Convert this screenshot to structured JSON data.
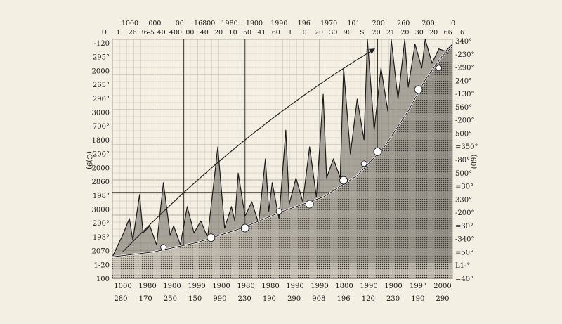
{
  "colors": {
    "background": "#f4efe3",
    "ink": "#1c1c1c",
    "grid": "#9a9486",
    "fill_dark": "#3a3a3a",
    "marker": "#ffffff"
  },
  "chart_data": {
    "type": "area",
    "title": "",
    "xlabel": "",
    "ylabel": "",
    "grid": true,
    "top_tick_labels_row1": [
      "1000",
      "000",
      "00",
      "16800",
      "1980",
      "1900",
      "1990",
      "196",
      "1970",
      "101",
      "200",
      "260",
      "200",
      "0"
    ],
    "top_tick_labels_row2": [
      "D",
      "1",
      "26",
      "36-5",
      "40",
      "400",
      "00",
      "40",
      "20",
      "10",
      "50",
      "41",
      "60",
      "1",
      "0",
      "20",
      "30",
      "90",
      "S",
      "20",
      "21",
      "20",
      "30",
      "20",
      "66",
      "6"
    ],
    "left_tick_labels": [
      "-120",
      "295°",
      "2000",
      "265°",
      "290°",
      "3000",
      "700°",
      "1800",
      "200°",
      "2000",
      "2860",
      "198°",
      "3000",
      "200°",
      "198°",
      "2070",
      "1-20",
      "100"
    ],
    "right_tick_labels": [
      "340°",
      "-230°",
      "-290°",
      "240°",
      "-130°",
      "560°",
      "-200°",
      "500°",
      "=350°",
      "-80°",
      "500°",
      "=30°",
      "330°",
      "-200°",
      "=30°",
      "-340°",
      "=50°",
      "L1-°",
      "=40°"
    ],
    "left_axis_label": "(C)9)",
    "right_axis_label": "(09)",
    "bottom_tick_labels_row1": [
      "1000",
      "1980",
      "1900",
      "1990",
      "1900",
      "1980",
      "1980",
      "1990",
      "1990",
      "1800",
      "1990",
      "1900",
      "199°",
      "2000"
    ],
    "bottom_tick_labels_row2": [
      "280",
      "170",
      "250",
      "150",
      "990",
      "230",
      "190",
      "290",
      "908",
      "196",
      "120",
      "230",
      "190",
      "290"
    ],
    "xlim": [
      0,
      100
    ],
    "ylim": [
      0,
      100
    ],
    "trend_line": {
      "x": [
        0,
        12,
        25,
        38,
        50,
        62,
        72,
        80,
        87,
        92,
        97,
        100
      ],
      "y": [
        9,
        11,
        15,
        21,
        28,
        34,
        43,
        55,
        70,
        83,
        93,
        97
      ]
    },
    "marked_points": {
      "x": [
        15,
        29,
        39,
        49,
        58,
        68,
        74,
        78,
        90,
        96
      ],
      "y": [
        13,
        17,
        21,
        28,
        31,
        41,
        48,
        53,
        79,
        88
      ]
    },
    "volatile_series": {
      "x": [
        0,
        3,
        5,
        6,
        8,
        9,
        11,
        13,
        15,
        17,
        18,
        20,
        22,
        24,
        26,
        28,
        31,
        33,
        35,
        36,
        37,
        39,
        41,
        43,
        45,
        46,
        47,
        49,
        51,
        52,
        54,
        56,
        58,
        60,
        62,
        63,
        65,
        67,
        68,
        70,
        72,
        74,
        75,
        77,
        79,
        81,
        82,
        84,
        86,
        87,
        89,
        91,
        92,
        94,
        96,
        98,
        100
      ],
      "y": [
        9,
        18,
        25,
        16,
        35,
        19,
        22,
        14,
        40,
        18,
        22,
        14,
        30,
        19,
        24,
        17,
        55,
        21,
        30,
        24,
        44,
        26,
        32,
        23,
        50,
        28,
        40,
        25,
        62,
        31,
        42,
        32,
        55,
        34,
        77,
        42,
        50,
        42,
        88,
        52,
        75,
        58,
        105,
        62,
        88,
        70,
        100,
        75,
        106,
        80,
        98,
        88,
        102,
        90,
        96,
        95,
        98
      ]
    },
    "arrow": {
      "from": [
        3,
        11
      ],
      "to": [
        77,
        105
      ]
    }
  }
}
